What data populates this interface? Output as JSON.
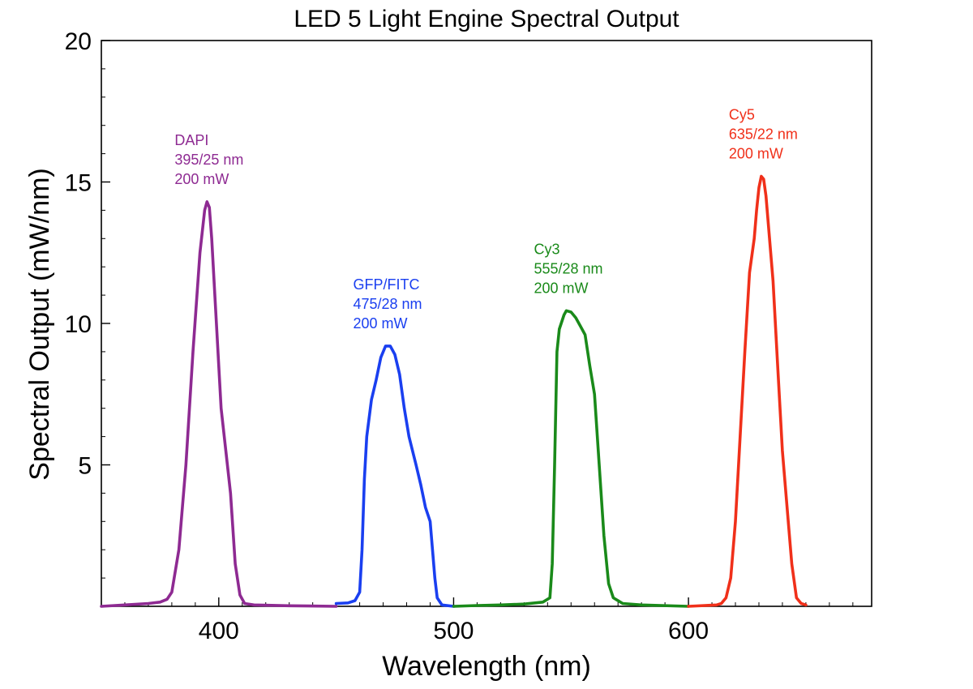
{
  "chart_data": {
    "type": "line",
    "title": "LED 5 Light Engine Spectral Output",
    "xlabel": "Wavelength (nm)",
    "ylabel": "Spectral Output (mW/nm)",
    "xlim": [
      350,
      678
    ],
    "ylim": [
      0,
      20
    ],
    "x_ticks": [
      400,
      500,
      600
    ],
    "y_ticks": [
      5,
      10,
      15,
      20
    ],
    "x_minor_step": 10,
    "y_minor_step": 1,
    "grid": false,
    "series": [
      {
        "color": "#8e2a92",
        "points": [
          [
            350,
            0.0
          ],
          [
            360,
            0.05
          ],
          [
            370,
            0.1
          ],
          [
            375,
            0.15
          ],
          [
            378,
            0.25
          ],
          [
            380,
            0.5
          ],
          [
            383,
            2.0
          ],
          [
            386,
            5.0
          ],
          [
            389,
            9.0
          ],
          [
            392,
            12.5
          ],
          [
            394,
            14.0
          ],
          [
            395,
            14.3
          ],
          [
            396,
            14.1
          ],
          [
            397,
            13.0
          ],
          [
            399,
            10.0
          ],
          [
            401,
            7.0
          ],
          [
            403,
            5.5
          ],
          [
            405,
            4.0
          ],
          [
            407,
            1.5
          ],
          [
            409,
            0.4
          ],
          [
            411,
            0.1
          ],
          [
            415,
            0.05
          ],
          [
            430,
            0.02
          ],
          [
            450,
            0.0
          ]
        ]
      },
      {
        "color": "#1a3ff0",
        "points": [
          [
            450,
            0.1
          ],
          [
            455,
            0.12
          ],
          [
            458,
            0.2
          ],
          [
            460,
            0.5
          ],
          [
            461,
            2.0
          ],
          [
            462,
            4.5
          ],
          [
            463,
            6.0
          ],
          [
            465,
            7.3
          ],
          [
            467,
            8.0
          ],
          [
            469,
            8.8
          ],
          [
            471,
            9.2
          ],
          [
            473,
            9.2
          ],
          [
            475,
            8.9
          ],
          [
            477,
            8.2
          ],
          [
            479,
            7.0
          ],
          [
            481,
            6.0
          ],
          [
            484,
            5.0
          ],
          [
            486,
            4.3
          ],
          [
            488,
            3.5
          ],
          [
            490,
            3.0
          ],
          [
            491,
            2.0
          ],
          [
            492,
            1.0
          ],
          [
            493,
            0.3
          ],
          [
            495,
            0.05
          ],
          [
            500,
            0.0
          ]
        ]
      },
      {
        "color": "#1a8a1a",
        "points": [
          [
            500,
            0.0
          ],
          [
            510,
            0.03
          ],
          [
            520,
            0.05
          ],
          [
            530,
            0.08
          ],
          [
            538,
            0.15
          ],
          [
            541,
            0.3
          ],
          [
            542,
            1.5
          ],
          [
            543,
            5.0
          ],
          [
            544,
            9.0
          ],
          [
            545,
            9.8
          ],
          [
            547,
            10.3
          ],
          [
            548,
            10.45
          ],
          [
            550,
            10.4
          ],
          [
            552,
            10.2
          ],
          [
            554,
            9.9
          ],
          [
            556,
            9.6
          ],
          [
            558,
            8.5
          ],
          [
            560,
            7.5
          ],
          [
            562,
            5.0
          ],
          [
            564,
            2.5
          ],
          [
            566,
            0.8
          ],
          [
            568,
            0.3
          ],
          [
            572,
            0.1
          ],
          [
            580,
            0.05
          ],
          [
            600,
            0.0
          ]
        ]
      },
      {
        "color": "#f0301a",
        "points": [
          [
            600,
            0.0
          ],
          [
            612,
            0.05
          ],
          [
            614,
            0.1
          ],
          [
            616,
            0.3
          ],
          [
            618,
            1.0
          ],
          [
            620,
            3.0
          ],
          [
            622,
            6.0
          ],
          [
            624,
            9.0
          ],
          [
            626,
            11.8
          ],
          [
            628,
            13.0
          ],
          [
            629,
            14.0
          ],
          [
            630,
            14.8
          ],
          [
            631,
            15.2
          ],
          [
            632,
            15.1
          ],
          [
            633,
            14.5
          ],
          [
            634,
            13.5
          ],
          [
            636,
            11.5
          ],
          [
            638,
            8.5
          ],
          [
            640,
            5.5
          ],
          [
            642,
            3.5
          ],
          [
            644,
            1.5
          ],
          [
            646,
            0.3
          ],
          [
            648,
            0.1
          ],
          [
            650,
            0.05
          ]
        ]
      }
    ],
    "annotations": [
      {
        "series_index": 0,
        "lines": [
          "DAPI",
          "395/25 nm",
          "200 mW"
        ]
      },
      {
        "series_index": 1,
        "lines": [
          "GFP/FITC",
          "475/28 nm",
          "200 mW"
        ]
      },
      {
        "series_index": 2,
        "lines": [
          "Cy3",
          "555/28 nm",
          "200 mW"
        ]
      },
      {
        "series_index": 3,
        "lines": [
          "Cy5",
          "635/22 nm",
          "200 mW"
        ]
      }
    ]
  }
}
